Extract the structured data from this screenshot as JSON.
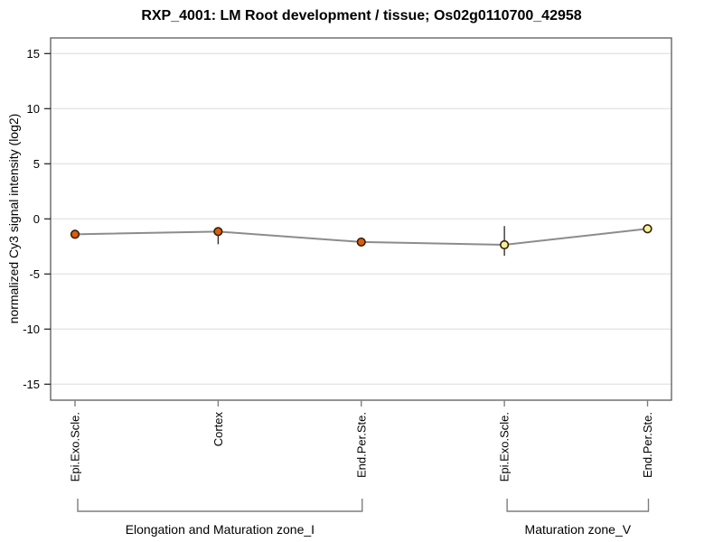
{
  "page": {
    "title": "RXP_4001: LM Root development / tissue; Os02g0110700_42958"
  },
  "chart_data": {
    "type": "line",
    "title": "RXP_4001: LM Root development / tissue; Os02g0110700_42958",
    "xlabel": "",
    "ylabel": "normalized Cy3 signal intensity (log2)",
    "ylim": [
      -16.4,
      16.4
    ],
    "yticks": [
      -15,
      -10,
      -5,
      0,
      5,
      10,
      15
    ],
    "grid": true,
    "legend": "none",
    "categories": [
      "Epi.Exo.Scle.",
      "Cortex",
      "End.Per.Ste.",
      "Epi.Exo.Scle.",
      "End.Per.Ste."
    ],
    "points": [
      {
        "category": "Epi.Exo.Scle.",
        "value": -1.4,
        "error_low": null,
        "error_high": null,
        "color": "#dd5c0e"
      },
      {
        "category": "Cortex",
        "value": -1.15,
        "error_low": -2.3,
        "error_high": -1.0,
        "color": "#dd5c0e"
      },
      {
        "category": "End.Per.Ste.",
        "value": -2.1,
        "error_low": null,
        "error_high": null,
        "color": "#dd5c0e"
      },
      {
        "category": "Epi.Exo.Scle.",
        "value": -2.35,
        "error_low": -3.35,
        "error_high": -0.65,
        "color": "#f2f0a2"
      },
      {
        "category": "End.Per.Ste.",
        "value": -0.9,
        "error_low": null,
        "error_high": null,
        "color": "#f2f0a2"
      }
    ],
    "groups": [
      {
        "label": "Elongation and Maturation zone_I",
        "from": 0,
        "to": 2
      },
      {
        "label": "Maturation zone_V",
        "from": 3,
        "to": 4
      }
    ],
    "colors": {
      "point_fill_high": "#dd5c0e",
      "point_fill_low": "#f2f0a2",
      "point_stroke": "#3a2000",
      "series_line": "#8c8c8c",
      "error_bar": "#262626",
      "gridline": "#e5e5e5",
      "plot_border": "#4d4d4d",
      "x_tick": "#808080",
      "bracket": "#7d7d7d",
      "text": "#000000"
    }
  }
}
